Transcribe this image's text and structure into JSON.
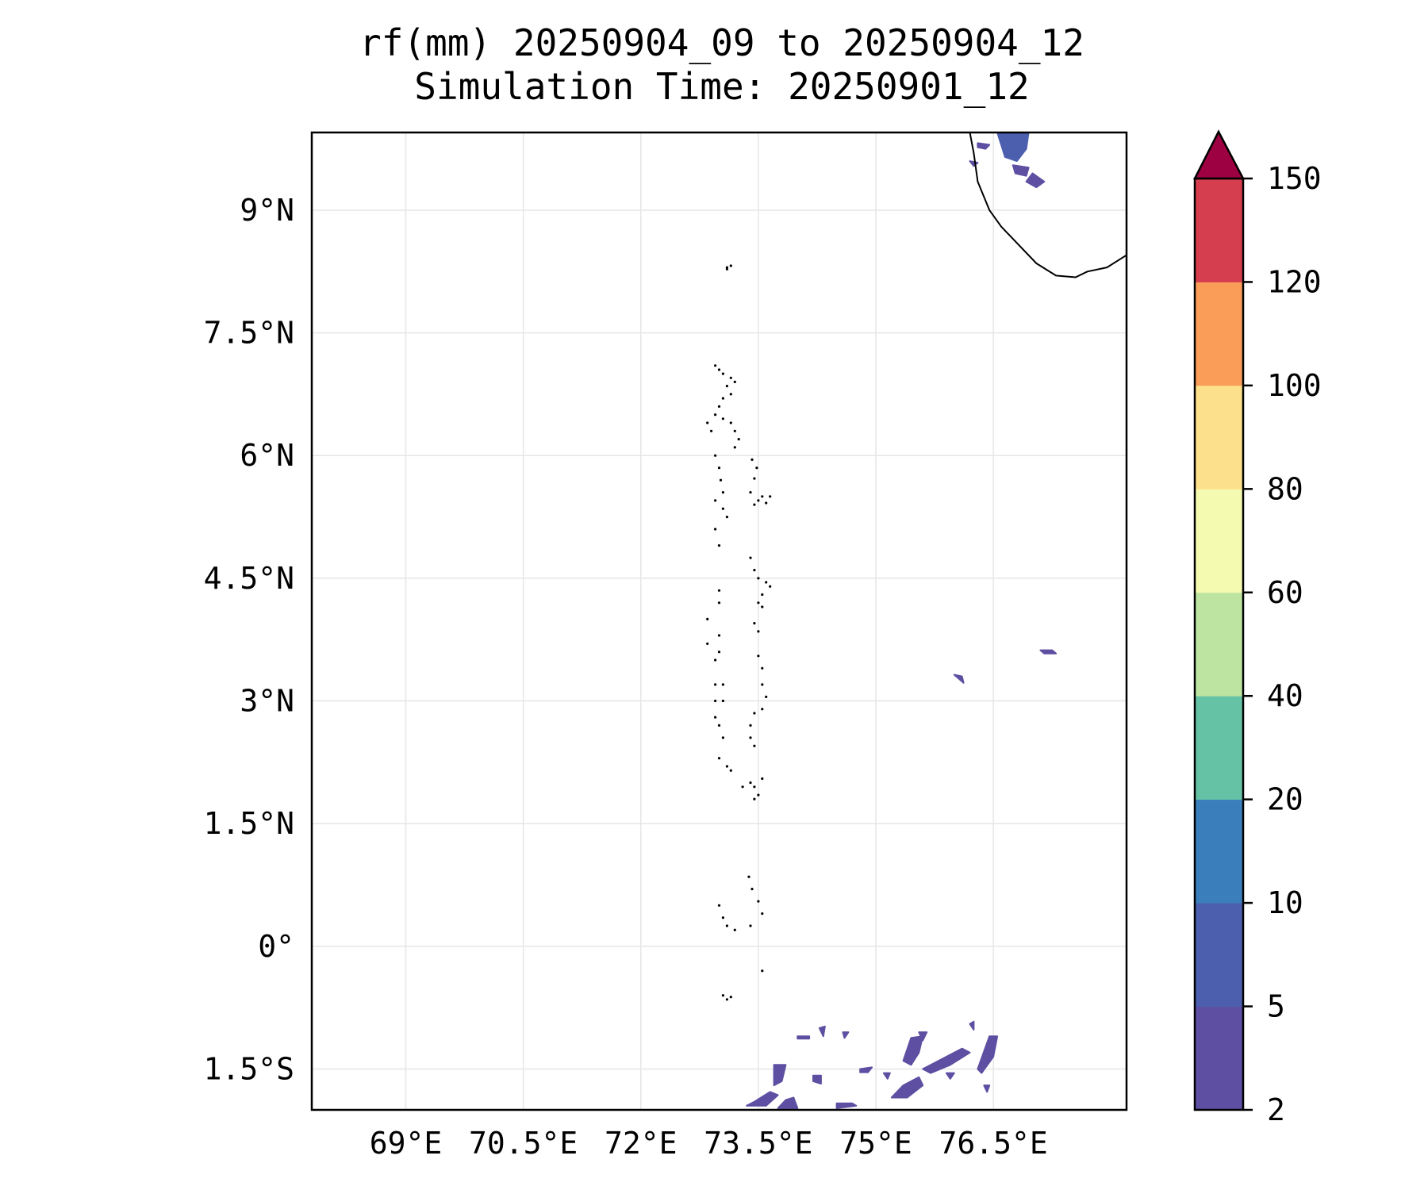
{
  "title": {
    "line1": "rf(mm) 20250904_09 to 20250904_12",
    "line2": "Simulation Time: 20250901_12"
  },
  "map": {
    "lon_range": [
      67.8,
      78.2
    ],
    "lat_range": [
      -2.0,
      9.95
    ],
    "lon_ticks": [
      {
        "value": 69.0,
        "label": "69°E"
      },
      {
        "value": 70.5,
        "label": "70.5°E"
      },
      {
        "value": 72.0,
        "label": "72°E"
      },
      {
        "value": 73.5,
        "label": "73.5°E"
      },
      {
        "value": 75.0,
        "label": "75°E"
      },
      {
        "value": 76.5,
        "label": "76.5°E"
      }
    ],
    "lat_ticks": [
      {
        "value": 9.0,
        "label": "9°N"
      },
      {
        "value": 7.5,
        "label": "7.5°N"
      },
      {
        "value": 6.0,
        "label": "6°N"
      },
      {
        "value": 4.5,
        "label": "4.5°N"
      },
      {
        "value": 3.0,
        "label": "3°N"
      },
      {
        "value": 1.5,
        "label": "1.5°N"
      },
      {
        "value": 0.0,
        "label": "0°"
      },
      {
        "value": -1.5,
        "label": "1.5°S"
      }
    ],
    "gridlines": true,
    "coastline_india": [
      [
        76.2,
        9.95
      ],
      [
        76.25,
        9.7
      ],
      [
        76.3,
        9.35
      ],
      [
        76.45,
        9.0
      ],
      [
        76.6,
        8.8
      ],
      [
        76.8,
        8.6
      ],
      [
        77.05,
        8.35
      ],
      [
        77.3,
        8.2
      ],
      [
        77.55,
        8.18
      ],
      [
        77.7,
        8.25
      ],
      [
        77.95,
        8.3
      ],
      [
        78.2,
        8.45
      ]
    ],
    "atolls": [
      [
        73.1,
        8.3
      ],
      [
        73.15,
        8.32
      ],
      [
        73.1,
        8.28
      ],
      [
        72.95,
        7.1
      ],
      [
        73.0,
        7.05
      ],
      [
        73.05,
        7.0
      ],
      [
        73.15,
        6.95
      ],
      [
        73.2,
        6.9
      ],
      [
        73.1,
        6.85
      ],
      [
        73.15,
        6.75
      ],
      [
        73.05,
        6.7
      ],
      [
        73.0,
        6.6
      ],
      [
        72.95,
        6.5
      ],
      [
        73.05,
        6.45
      ],
      [
        73.15,
        6.4
      ],
      [
        73.2,
        6.3
      ],
      [
        73.25,
        6.2
      ],
      [
        73.2,
        6.1
      ],
      [
        72.85,
        6.4
      ],
      [
        72.9,
        6.3
      ],
      [
        72.95,
        6.0
      ],
      [
        73.0,
        5.85
      ],
      [
        73.02,
        5.7
      ],
      [
        73.05,
        5.55
      ],
      [
        72.95,
        5.45
      ],
      [
        73.05,
        5.35
      ],
      [
        73.1,
        5.25
      ],
      [
        72.95,
        5.1
      ],
      [
        73.0,
        4.9
      ],
      [
        73.42,
        5.95
      ],
      [
        73.48,
        5.85
      ],
      [
        73.45,
        5.72
      ],
      [
        73.4,
        5.55
      ],
      [
        73.5,
        5.45
      ],
      [
        73.55,
        5.5
      ],
      [
        73.6,
        5.42
      ],
      [
        73.65,
        5.5
      ],
      [
        73.45,
        5.4
      ],
      [
        73.4,
        4.75
      ],
      [
        73.45,
        4.6
      ],
      [
        73.5,
        4.5
      ],
      [
        73.6,
        4.45
      ],
      [
        73.65,
        4.4
      ],
      [
        73.55,
        4.3
      ],
      [
        73.5,
        4.2
      ],
      [
        73.55,
        4.15
      ],
      [
        73.45,
        3.95
      ],
      [
        73.5,
        3.85
      ],
      [
        73.0,
        4.35
      ],
      [
        73.0,
        4.2
      ],
      [
        72.85,
        4.0
      ],
      [
        72.85,
        3.7
      ],
      [
        73.0,
        3.8
      ],
      [
        73.0,
        3.6
      ],
      [
        72.95,
        3.5
      ],
      [
        72.95,
        3.2
      ],
      [
        73.05,
        3.2
      ],
      [
        72.95,
        3.0
      ],
      [
        73.05,
        3.0
      ],
      [
        72.95,
        2.8
      ],
      [
        73.0,
        2.7
      ],
      [
        73.5,
        3.55
      ],
      [
        73.55,
        3.4
      ],
      [
        73.55,
        3.2
      ],
      [
        73.6,
        3.05
      ],
      [
        73.55,
        2.9
      ],
      [
        73.45,
        2.85
      ],
      [
        73.4,
        2.7
      ],
      [
        73.4,
        2.55
      ],
      [
        73.45,
        2.45
      ],
      [
        73.05,
        2.55
      ],
      [
        73.0,
        2.3
      ],
      [
        73.1,
        2.2
      ],
      [
        73.15,
        2.15
      ],
      [
        73.3,
        1.95
      ],
      [
        73.4,
        2.0
      ],
      [
        73.45,
        1.95
      ],
      [
        73.55,
        2.05
      ],
      [
        73.5,
        1.85
      ],
      [
        73.45,
        1.8
      ],
      [
        73.38,
        0.85
      ],
      [
        73.42,
        0.7
      ],
      [
        73.5,
        0.55
      ],
      [
        73.55,
        0.4
      ],
      [
        73.0,
        0.5
      ],
      [
        73.05,
        0.35
      ],
      [
        73.1,
        0.25
      ],
      [
        73.2,
        0.2
      ],
      [
        73.4,
        0.25
      ],
      [
        73.55,
        -0.3
      ],
      [
        73.05,
        -0.6
      ],
      [
        73.1,
        -0.65
      ],
      [
        73.15,
        -0.62
      ]
    ],
    "rain_areas": [
      {
        "color": "#4c5fae",
        "points": [
          [
            76.55,
            9.95
          ],
          [
            76.95,
            9.95
          ],
          [
            76.92,
            9.75
          ],
          [
            76.8,
            9.6
          ],
          [
            76.65,
            9.65
          ],
          [
            76.6,
            9.8
          ]
        ]
      },
      {
        "color": "#5e4fa2",
        "points": [
          [
            76.75,
            9.55
          ],
          [
            76.95,
            9.52
          ],
          [
            76.92,
            9.42
          ],
          [
            76.78,
            9.45
          ]
        ]
      },
      {
        "color": "#5e4fa2",
        "points": [
          [
            77.0,
            9.45
          ],
          [
            77.15,
            9.35
          ],
          [
            77.05,
            9.28
          ],
          [
            76.92,
            9.35
          ]
        ]
      },
      {
        "color": "#5e4fa2",
        "points": [
          [
            76.3,
            9.82
          ],
          [
            76.45,
            9.8
          ],
          [
            76.4,
            9.75
          ],
          [
            76.3,
            9.77
          ]
        ]
      },
      {
        "color": "#5e4fa2",
        "points": [
          [
            76.2,
            9.6
          ],
          [
            76.3,
            9.58
          ],
          [
            76.25,
            9.54
          ]
        ]
      },
      {
        "color": "#5e4fa2",
        "points": [
          [
            76.0,
            3.32
          ],
          [
            76.1,
            3.3
          ],
          [
            76.12,
            3.22
          ],
          [
            76.05,
            3.28
          ]
        ]
      },
      {
        "color": "#5e4fa2",
        "points": [
          [
            77.1,
            3.62
          ],
          [
            77.25,
            3.62
          ],
          [
            77.3,
            3.58
          ],
          [
            77.15,
            3.58
          ]
        ]
      },
      {
        "color": "#5e4fa2",
        "points": [
          [
            73.7,
            -1.45
          ],
          [
            73.85,
            -1.45
          ],
          [
            73.8,
            -1.65
          ],
          [
            73.7,
            -1.7
          ]
        ]
      },
      {
        "color": "#5e4fa2",
        "points": [
          [
            73.35,
            -1.95
          ],
          [
            73.6,
            -1.95
          ],
          [
            73.75,
            -1.82
          ],
          [
            73.65,
            -1.78
          ],
          [
            73.45,
            -1.9
          ]
        ]
      },
      {
        "color": "#5e4fa2",
        "points": [
          [
            73.75,
            -1.98
          ],
          [
            74.0,
            -1.98
          ],
          [
            73.95,
            -1.85
          ],
          [
            73.85,
            -1.88
          ]
        ]
      },
      {
        "color": "#5e4fa2",
        "points": [
          [
            74.2,
            -1.58
          ],
          [
            74.3,
            -1.58
          ],
          [
            74.3,
            -1.68
          ],
          [
            74.2,
            -1.65
          ]
        ]
      },
      {
        "color": "#5e4fa2",
        "points": [
          [
            74.5,
            -1.98
          ],
          [
            74.75,
            -1.95
          ],
          [
            74.7,
            -1.92
          ],
          [
            74.5,
            -1.92
          ]
        ]
      },
      {
        "color": "#5e4fa2",
        "points": [
          [
            74.0,
            -1.1
          ],
          [
            74.15,
            -1.1
          ],
          [
            74.15,
            -1.13
          ],
          [
            74.0,
            -1.13
          ]
        ]
      },
      {
        "color": "#5e4fa2",
        "points": [
          [
            74.28,
            -1.0
          ],
          [
            74.35,
            -0.98
          ],
          [
            74.33,
            -1.1
          ]
        ]
      },
      {
        "color": "#5e4fa2",
        "points": [
          [
            74.58,
            -1.05
          ],
          [
            74.65,
            -1.05
          ],
          [
            74.6,
            -1.12
          ]
        ]
      },
      {
        "color": "#5e4fa2",
        "points": [
          [
            74.8,
            -1.5
          ],
          [
            74.95,
            -1.48
          ],
          [
            74.9,
            -1.54
          ],
          [
            74.8,
            -1.54
          ]
        ]
      },
      {
        "color": "#5e4fa2",
        "points": [
          [
            75.35,
            -1.4
          ],
          [
            75.45,
            -1.12
          ],
          [
            75.6,
            -1.1
          ],
          [
            75.55,
            -1.3
          ],
          [
            75.45,
            -1.45
          ]
        ]
      },
      {
        "color": "#5e4fa2",
        "points": [
          [
            75.2,
            -1.85
          ],
          [
            75.35,
            -1.7
          ],
          [
            75.55,
            -1.6
          ],
          [
            75.6,
            -1.7
          ],
          [
            75.4,
            -1.85
          ]
        ]
      },
      {
        "color": "#5e4fa2",
        "points": [
          [
            75.6,
            -1.5
          ],
          [
            75.9,
            -1.35
          ],
          [
            76.1,
            -1.25
          ],
          [
            76.2,
            -1.3
          ],
          [
            75.95,
            -1.45
          ],
          [
            75.7,
            -1.55
          ]
        ]
      },
      {
        "color": "#5e4fa2",
        "points": [
          [
            76.3,
            -1.5
          ],
          [
            76.45,
            -1.1
          ],
          [
            76.55,
            -1.1
          ],
          [
            76.5,
            -1.35
          ],
          [
            76.35,
            -1.55
          ]
        ]
      },
      {
        "color": "#5e4fa2",
        "points": [
          [
            75.55,
            -1.05
          ],
          [
            75.65,
            -1.05
          ],
          [
            75.6,
            -1.15
          ]
        ]
      },
      {
        "color": "#5e4fa2",
        "points": [
          [
            75.9,
            -1.55
          ],
          [
            76.0,
            -1.55
          ],
          [
            75.95,
            -1.62
          ]
        ]
      },
      {
        "color": "#5e4fa2",
        "points": [
          [
            76.2,
            -0.95
          ],
          [
            76.25,
            -0.92
          ],
          [
            76.25,
            -1.02
          ]
        ]
      },
      {
        "color": "#5e4fa2",
        "points": [
          [
            76.38,
            -1.7
          ],
          [
            76.45,
            -1.7
          ],
          [
            76.42,
            -1.78
          ]
        ]
      },
      {
        "color": "#5e4fa2",
        "points": [
          [
            75.1,
            -1.55
          ],
          [
            75.18,
            -1.55
          ],
          [
            75.15,
            -1.62
          ]
        ]
      }
    ]
  },
  "colorbar": {
    "levels": [
      {
        "value": 2,
        "label": "2"
      },
      {
        "value": 5,
        "label": "5"
      },
      {
        "value": 10,
        "label": "10"
      },
      {
        "value": 20,
        "label": "20"
      },
      {
        "value": 40,
        "label": "40"
      },
      {
        "value": 60,
        "label": "60"
      },
      {
        "value": 80,
        "label": "80"
      },
      {
        "value": 100,
        "label": "100"
      },
      {
        "value": 120,
        "label": "120"
      },
      {
        "value": 150,
        "label": "150"
      }
    ],
    "colors": [
      "#5e4fa2",
      "#4c5fae",
      "#3a7fbb",
      "#66c2a5",
      "#bde4a0",
      "#f4fbb0",
      "#fde08b",
      "#f99d59",
      "#d53e4f"
    ],
    "extend_color": "#9e0142"
  }
}
